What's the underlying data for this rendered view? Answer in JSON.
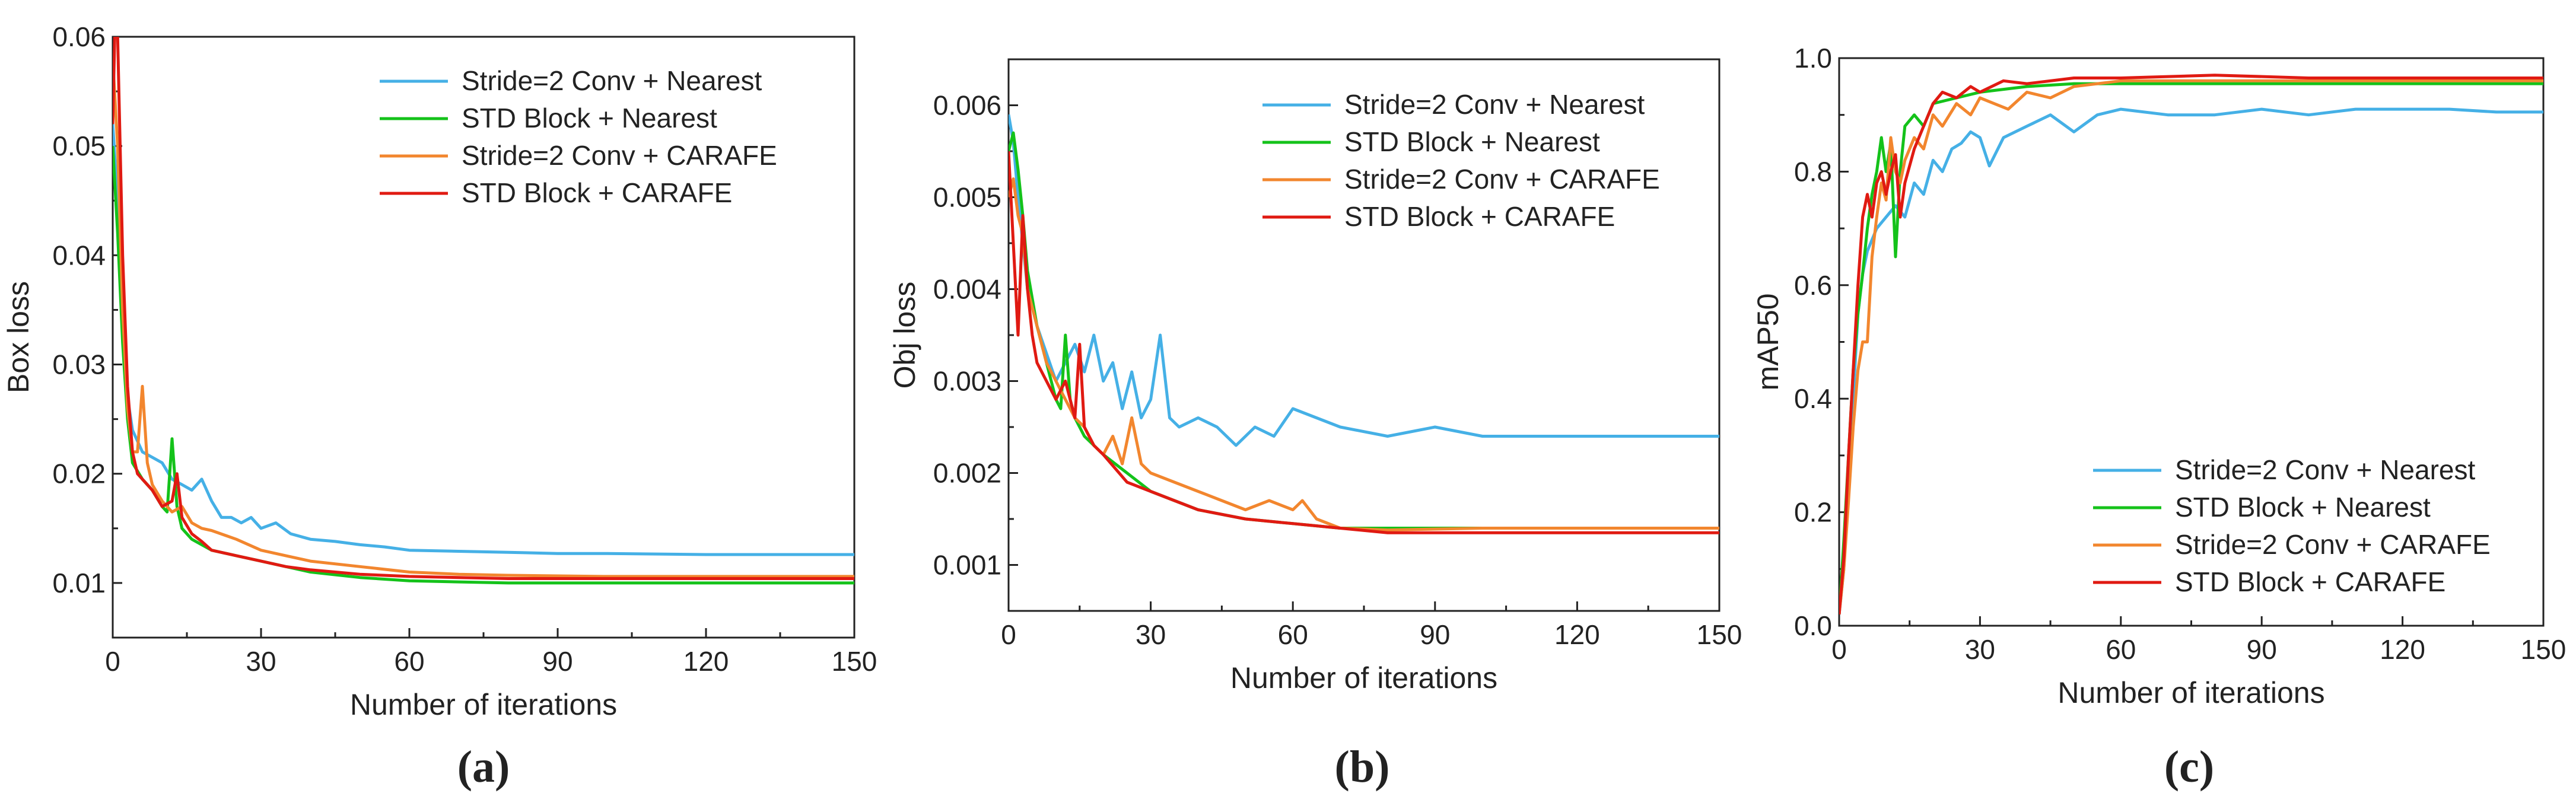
{
  "colors": {
    "Stride=2 Conv + Nearest": "#45b0e6",
    "STD Block + Nearest": "#14c21a",
    "Stride=2 Conv + CARAFE": "#f2862e",
    "STD Block + CARAFE": "#e01a12"
  },
  "chart_data": [
    {
      "type": "line",
      "panel_label": "(a)",
      "title": "",
      "xlabel": "Number of iterations",
      "ylabel": "Box loss",
      "xlim": [
        0,
        150
      ],
      "ylim": [
        0.005,
        0.06
      ],
      "xticks": [
        0,
        30,
        60,
        90,
        120,
        150
      ],
      "yticks": [
        0.01,
        0.02,
        0.03,
        0.04,
        0.05,
        0.06
      ],
      "ytick_labels": [
        "0.01",
        "0.02",
        "0.03",
        "0.04",
        "0.05",
        "0.06"
      ],
      "legend_position": "top-right",
      "series": [
        {
          "name": "Stride=2 Conv + Nearest",
          "x": [
            0,
            1,
            2,
            3,
            4,
            6,
            8,
            10,
            12,
            14,
            16,
            18,
            20,
            22,
            24,
            26,
            28,
            30,
            33,
            36,
            40,
            45,
            50,
            55,
            60,
            70,
            80,
            90,
            100,
            120,
            150
          ],
          "y": [
            0.052,
            0.045,
            0.034,
            0.027,
            0.024,
            0.022,
            0.0215,
            0.021,
            0.0195,
            0.019,
            0.0185,
            0.0195,
            0.0175,
            0.016,
            0.016,
            0.0155,
            0.016,
            0.015,
            0.0155,
            0.0145,
            0.014,
            0.0138,
            0.0135,
            0.0133,
            0.013,
            0.0129,
            0.0128,
            0.0127,
            0.0127,
            0.0126,
            0.0126
          ]
        },
        {
          "name": "STD Block + Nearest",
          "x": [
            0,
            1,
            2,
            3,
            4,
            6,
            8,
            10,
            11,
            12,
            13,
            14,
            16,
            18,
            20,
            25,
            30,
            35,
            40,
            50,
            60,
            70,
            80,
            100,
            120,
            150
          ],
          "y": [
            0.05,
            0.042,
            0.032,
            0.025,
            0.021,
            0.0195,
            0.0185,
            0.017,
            0.0165,
            0.0232,
            0.017,
            0.015,
            0.014,
            0.0135,
            0.013,
            0.0125,
            0.012,
            0.0115,
            0.011,
            0.0105,
            0.0102,
            0.0101,
            0.01,
            0.01,
            0.01,
            0.01
          ]
        },
        {
          "name": "Stride=2 Conv + CARAFE",
          "x": [
            0,
            1,
            2,
            3,
            4,
            5,
            6,
            7,
            8,
            10,
            12,
            14,
            16,
            18,
            20,
            25,
            30,
            35,
            40,
            50,
            60,
            70,
            80,
            100,
            120,
            150
          ],
          "y": [
            0.058,
            0.05,
            0.035,
            0.026,
            0.022,
            0.022,
            0.028,
            0.021,
            0.019,
            0.0175,
            0.0165,
            0.017,
            0.0155,
            0.015,
            0.0148,
            0.014,
            0.013,
            0.0125,
            0.012,
            0.0115,
            0.011,
            0.0108,
            0.0107,
            0.0106,
            0.0106,
            0.0106
          ]
        },
        {
          "name": "STD Block + CARAFE",
          "x": [
            0,
            0.5,
            1,
            2,
            3,
            4,
            5,
            6,
            8,
            10,
            12,
            13,
            14,
            16,
            18,
            20,
            25,
            30,
            35,
            40,
            50,
            60,
            70,
            80,
            100,
            120,
            150
          ],
          "y": [
            0.052,
            0.062,
            0.06,
            0.04,
            0.028,
            0.022,
            0.02,
            0.0195,
            0.0185,
            0.017,
            0.0175,
            0.02,
            0.016,
            0.0145,
            0.0138,
            0.013,
            0.0125,
            0.012,
            0.0115,
            0.0112,
            0.0108,
            0.0106,
            0.0105,
            0.0104,
            0.0104,
            0.0104,
            0.0104
          ]
        }
      ]
    },
    {
      "type": "line",
      "panel_label": "(b)",
      "title": "",
      "xlabel": "Number of iterations",
      "ylabel": "Obj loss",
      "xlim": [
        0,
        150
      ],
      "ylim": [
        0.0005,
        0.0065
      ],
      "xticks": [
        0,
        30,
        60,
        90,
        120,
        150
      ],
      "yticks": [
        0.001,
        0.002,
        0.003,
        0.004,
        0.005,
        0.006
      ],
      "ytick_labels": [
        "0.001",
        "0.002",
        "0.003",
        "0.004",
        "0.005",
        "0.006"
      ],
      "legend_position": "top-right",
      "series": [
        {
          "name": "Stride=2 Conv + Nearest",
          "x": [
            0,
            1,
            2,
            3,
            4,
            6,
            8,
            10,
            12,
            14,
            16,
            18,
            20,
            22,
            24,
            26,
            28,
            30,
            32,
            34,
            36,
            40,
            44,
            48,
            52,
            56,
            60,
            70,
            80,
            90,
            100,
            110,
            120,
            150
          ],
          "y": [
            0.0059,
            0.0056,
            0.005,
            0.0045,
            0.004,
            0.0036,
            0.0033,
            0.003,
            0.0032,
            0.0034,
            0.0031,
            0.0035,
            0.003,
            0.0032,
            0.0027,
            0.0031,
            0.0026,
            0.0028,
            0.0035,
            0.0026,
            0.0025,
            0.0026,
            0.0025,
            0.0023,
            0.0025,
            0.0024,
            0.0027,
            0.0025,
            0.0024,
            0.0025,
            0.0024,
            0.0024,
            0.0024,
            0.0024
          ]
        },
        {
          "name": "STD Block + Nearest",
          "x": [
            0,
            1,
            2,
            3,
            4,
            6,
            8,
            10,
            11,
            12,
            13,
            14,
            16,
            18,
            20,
            25,
            30,
            35,
            40,
            50,
            60,
            70,
            80,
            100,
            120,
            150
          ],
          "y": [
            0.0055,
            0.0057,
            0.0053,
            0.0048,
            0.0042,
            0.0036,
            0.0032,
            0.0028,
            0.0027,
            0.0035,
            0.0028,
            0.0026,
            0.0024,
            0.0023,
            0.0022,
            0.002,
            0.0018,
            0.0017,
            0.0016,
            0.0015,
            0.00145,
            0.0014,
            0.0014,
            0.0014,
            0.0014,
            0.0014
          ]
        },
        {
          "name": "Stride=2 Conv + CARAFE",
          "x": [
            0,
            1,
            2,
            3,
            4,
            5,
            6,
            8,
            10,
            12,
            14,
            16,
            18,
            20,
            22,
            24,
            26,
            28,
            30,
            35,
            40,
            45,
            50,
            55,
            60,
            62,
            65,
            70,
            80,
            100,
            120,
            150
          ],
          "y": [
            0.005,
            0.0052,
            0.0048,
            0.0046,
            0.004,
            0.0038,
            0.0036,
            0.0032,
            0.003,
            0.0028,
            0.0026,
            0.0025,
            0.0023,
            0.0022,
            0.0024,
            0.0021,
            0.0026,
            0.0021,
            0.002,
            0.0019,
            0.0018,
            0.0017,
            0.0016,
            0.0017,
            0.0016,
            0.0017,
            0.0015,
            0.0014,
            0.00138,
            0.0014,
            0.0014,
            0.0014
          ]
        },
        {
          "name": "STD Block + CARAFE",
          "x": [
            0,
            1,
            2,
            3,
            4,
            5,
            6,
            8,
            10,
            12,
            14,
            15,
            16,
            18,
            20,
            25,
            30,
            35,
            40,
            50,
            60,
            70,
            80,
            100,
            120,
            150
          ],
          "y": [
            0.0055,
            0.0045,
            0.0035,
            0.0048,
            0.004,
            0.0035,
            0.0032,
            0.003,
            0.0028,
            0.003,
            0.0026,
            0.0034,
            0.0025,
            0.0023,
            0.0022,
            0.0019,
            0.0018,
            0.0017,
            0.0016,
            0.0015,
            0.00145,
            0.0014,
            0.00135,
            0.00135,
            0.00135,
            0.00135
          ]
        }
      ]
    },
    {
      "type": "line",
      "panel_label": "(c)",
      "title": "",
      "xlabel": "Number of iterations",
      "ylabel": "mAP50",
      "xlim": [
        0,
        150
      ],
      "ylim": [
        0.0,
        1.0
      ],
      "xticks": [
        0,
        30,
        60,
        90,
        120,
        150
      ],
      "yticks": [
        0.0,
        0.2,
        0.4,
        0.6,
        0.8,
        1.0
      ],
      "ytick_labels": [
        "0.0",
        "0.2",
        "0.4",
        "0.6",
        "0.8",
        "1.0"
      ],
      "legend_position": "bottom-right",
      "series": [
        {
          "name": "Stride=2 Conv + Nearest",
          "x": [
            0,
            1,
            2,
            3,
            4,
            5,
            6,
            8,
            10,
            12,
            14,
            16,
            18,
            20,
            22,
            24,
            26,
            28,
            30,
            32,
            35,
            40,
            45,
            50,
            55,
            60,
            70,
            80,
            90,
            100,
            110,
            120,
            130,
            140,
            150
          ],
          "y": [
            0.02,
            0.1,
            0.25,
            0.4,
            0.55,
            0.62,
            0.66,
            0.7,
            0.72,
            0.74,
            0.72,
            0.78,
            0.76,
            0.82,
            0.8,
            0.84,
            0.85,
            0.87,
            0.86,
            0.81,
            0.86,
            0.88,
            0.9,
            0.87,
            0.9,
            0.91,
            0.9,
            0.9,
            0.91,
            0.9,
            0.91,
            0.91,
            0.91,
            0.905,
            0.905
          ]
        },
        {
          "name": "STD Block + Nearest",
          "x": [
            0,
            1,
            2,
            3,
            4,
            5,
            6,
            7,
            8,
            9,
            10,
            11,
            12,
            13,
            14,
            16,
            18,
            20,
            25,
            30,
            40,
            50,
            60,
            80,
            100,
            120,
            150
          ],
          "y": [
            0.02,
            0.15,
            0.3,
            0.45,
            0.55,
            0.62,
            0.7,
            0.76,
            0.8,
            0.86,
            0.8,
            0.85,
            0.65,
            0.8,
            0.88,
            0.9,
            0.88,
            0.92,
            0.93,
            0.94,
            0.95,
            0.955,
            0.955,
            0.955,
            0.955,
            0.955,
            0.955
          ]
        },
        {
          "name": "Stride=2 Conv + CARAFE",
          "x": [
            0,
            1,
            2,
            3,
            4,
            5,
            6,
            7,
            8,
            9,
            10,
            11,
            12,
            13,
            14,
            16,
            18,
            20,
            22,
            25,
            28,
            30,
            33,
            36,
            40,
            45,
            50,
            60,
            80,
            100,
            120,
            150
          ],
          "y": [
            0.02,
            0.1,
            0.22,
            0.35,
            0.45,
            0.5,
            0.5,
            0.65,
            0.72,
            0.78,
            0.75,
            0.86,
            0.8,
            0.78,
            0.82,
            0.86,
            0.84,
            0.9,
            0.88,
            0.92,
            0.9,
            0.93,
            0.92,
            0.91,
            0.94,
            0.93,
            0.95,
            0.96,
            0.96,
            0.96,
            0.96,
            0.96
          ]
        },
        {
          "name": "STD Block + CARAFE",
          "x": [
            0,
            1,
            2,
            3,
            4,
            5,
            6,
            7,
            8,
            9,
            10,
            11,
            12,
            13,
            14,
            16,
            18,
            20,
            22,
            25,
            28,
            30,
            35,
            40,
            50,
            60,
            80,
            100,
            120,
            150
          ],
          "y": [
            0.02,
            0.12,
            0.3,
            0.45,
            0.6,
            0.72,
            0.76,
            0.72,
            0.78,
            0.8,
            0.76,
            0.8,
            0.83,
            0.72,
            0.78,
            0.84,
            0.88,
            0.92,
            0.94,
            0.93,
            0.95,
            0.94,
            0.96,
            0.955,
            0.965,
            0.965,
            0.97,
            0.965,
            0.965,
            0.965
          ]
        }
      ]
    }
  ]
}
